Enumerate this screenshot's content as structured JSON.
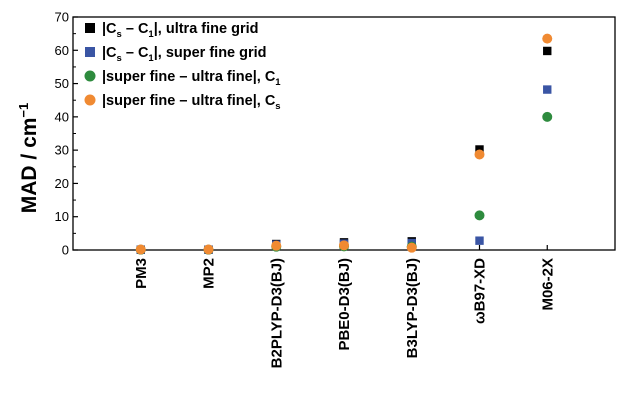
{
  "chart_data": {
    "type": "scatter",
    "title": "",
    "xlabel": "",
    "ylabel": "MAD / cm",
    "ylabel_sup": "−1",
    "ylim": [
      0,
      70
    ],
    "yticks": [
      "0",
      "10",
      "20",
      "30",
      "40",
      "50",
      "60",
      "70"
    ],
    "grid": false,
    "legend_position": "top-left",
    "categories": [
      "PM3",
      "MP2",
      "B2PLYP-D3(BJ)",
      "PBE0-D3(BJ)",
      "B3LYP-D3(BJ)",
      "ωB97-XD",
      "M06-2X"
    ],
    "series": [
      {
        "legend": {
          "a": "|C",
          "a_sub": "s",
          "b": " – C",
          "b_sub": "1",
          "c": "|, ultra fine grid"
        },
        "marker": "square",
        "color": "#000000",
        "values": [
          0.1,
          0.1,
          1.8,
          2.3,
          2.6,
          30.2,
          59.8
        ]
      },
      {
        "legend": {
          "a": "|C",
          "a_sub": "s",
          "b": " – C",
          "b_sub": "1",
          "c": "|, super fine grid"
        },
        "marker": "square",
        "color": "#3a55a4",
        "values": [
          0.1,
          0.1,
          1.6,
          1.9,
          2.1,
          2.8,
          48.2
        ]
      },
      {
        "legend": {
          "a": "|super fine – ultra fine|, C",
          "a_sub": "1",
          "b": "",
          "b_sub": "",
          "c": ""
        },
        "marker": "circle",
        "color": "#2e8b3e",
        "values": [
          0.1,
          0.1,
          1.0,
          1.1,
          1.0,
          10.4,
          40.0
        ]
      },
      {
        "legend": {
          "a": "|super fine – ultra fine|, C",
          "a_sub": "s",
          "b": "",
          "b_sub": "",
          "c": ""
        },
        "marker": "circle",
        "color": "#f08a32",
        "values": [
          0.15,
          0.15,
          1.3,
          1.4,
          0.7,
          28.7,
          63.5
        ]
      }
    ]
  }
}
